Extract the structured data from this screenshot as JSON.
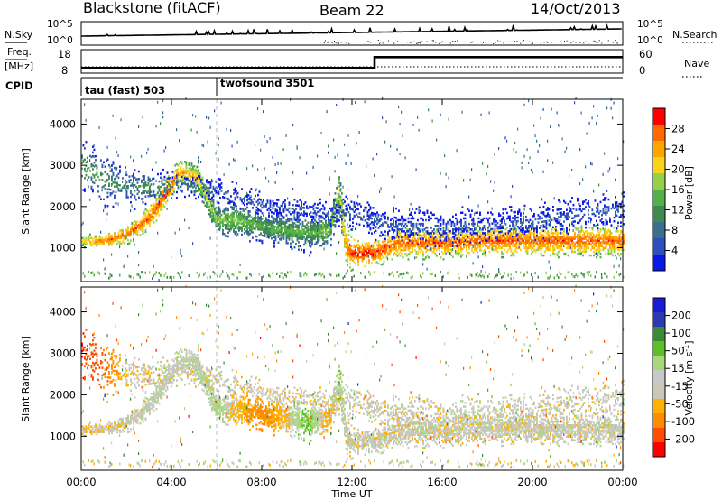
{
  "header": {
    "station": "Blackstone (fitACF)",
    "beam": "Beam 22",
    "date": "14/Oct/2013"
  },
  "summary_panels": {
    "nsky_label": "N.Sky",
    "nsearch_label": "N.Search",
    "noise_ticks_left": [
      "10^5",
      "10^0"
    ],
    "noise_ticks_right": [
      "10^5",
      "10^0"
    ],
    "freq_label_line1": "Freq.",
    "freq_label_line2": "[MHz]",
    "freq_ticks": [
      "18",
      "8"
    ],
    "nave_label": "Nave",
    "nave_ticks": [
      "60",
      "0"
    ],
    "cpid_label": "CPID",
    "cpid_segments": [
      {
        "name": "tau (fast) 503",
        "start_hour": 0
      },
      {
        "name": "twofsound 3501",
        "start_hour": 6
      }
    ]
  },
  "colors": {
    "power_scale": [
      "#0a1ae6",
      "#2e4fbf",
      "#3b6e8c",
      "#3f8a4c",
      "#55b04a",
      "#95d04a",
      "#ffd21a",
      "#ffa500",
      "#ff6a00",
      "#ff0000"
    ],
    "velocity_scale": [
      "#ff0000",
      "#ff4d00",
      "#ff8c00",
      "#ffb000",
      "#c8c8b4",
      "#c8c8c8",
      "#a8d878",
      "#5cbf2a",
      "#3a8a3a",
      "#2c3cb0",
      "#1a1ad8"
    ]
  },
  "chart_data": [
    {
      "type": "heatmap",
      "title": "",
      "parameter": "Power",
      "xlabel": "Time UT",
      "ylabel": "Slant Range [km]",
      "xlim_hours": [
        0,
        24
      ],
      "ylim_km": [
        180,
        4600
      ],
      "x_tick_labels": [
        "00:00",
        "04:00",
        "08:00",
        "12:00",
        "16:00",
        "20:00",
        "00:00"
      ],
      "y_tick_labels": [
        "1000",
        "2000",
        "3000",
        "4000"
      ],
      "y_tick_values": [
        1000,
        2000,
        3000,
        4000
      ],
      "colorbar_label": "Power [dB]",
      "colorbar_ticks": [
        "4",
        "8",
        "12",
        "16",
        "20",
        "24",
        "28"
      ],
      "colorbar_range": [
        0,
        30
      ],
      "echo_bands": [
        {
          "name": "main",
          "t": [
            0,
            1,
            2,
            3,
            3.8,
            4.3,
            4.6,
            5.2,
            6,
            7,
            8,
            9,
            10,
            11,
            11.4,
            11.7,
            12,
            13,
            14,
            16,
            18,
            20,
            22,
            24
          ],
          "r": [
            1150,
            1150,
            1300,
            1700,
            2350,
            2800,
            2800,
            2650,
            1650,
            1650,
            1500,
            1400,
            1350,
            1400,
            2350,
            1000,
            850,
            850,
            1100,
            1100,
            1150,
            1150,
            1150,
            1150
          ],
          "w": [
            100,
            100,
            150,
            200,
            250,
            200,
            200,
            300,
            250,
            300,
            250,
            300,
            300,
            300,
            350,
            400,
            250,
            200,
            250,
            250,
            250,
            250,
            250,
            250
          ],
          "p": [
            22,
            26,
            26,
            26,
            26,
            24,
            22,
            20,
            16,
            16,
            14,
            14,
            14,
            16,
            18,
            24,
            28,
            28,
            26,
            26,
            26,
            26,
            26,
            26
          ],
          "v": [
            -15,
            -5,
            0,
            5,
            10,
            10,
            10,
            15,
            30,
            -30,
            -70,
            -20,
            60,
            -40,
            40,
            0,
            0,
            0,
            0,
            0,
            0,
            0,
            0,
            0
          ]
        },
        {
          "name": "upper",
          "t": [
            0,
            1,
            2,
            3,
            4,
            4.5,
            5,
            5.5,
            6,
            8,
            10,
            11,
            12,
            14,
            16,
            18,
            20,
            22,
            24
          ],
          "r": [
            3000,
            2600,
            2450,
            2450,
            2450,
            2500,
            2450,
            2450,
            2400,
            2000,
            1900,
            1800,
            1800,
            1500,
            1500,
            1500,
            1600,
            1800,
            1900
          ],
          "w": [
            400,
            400,
            350,
            300,
            250,
            200,
            200,
            200,
            200,
            200,
            200,
            200,
            300,
            300,
            300,
            300,
            300,
            300,
            300
          ],
          "p": [
            14,
            12,
            10,
            12,
            10,
            8,
            8,
            8,
            6,
            6,
            6,
            6,
            6,
            6,
            6,
            6,
            6,
            6,
            6
          ],
          "v": [
            -200,
            -100,
            -15,
            0,
            0,
            0,
            0,
            0,
            0,
            0,
            0,
            0,
            0,
            0,
            0,
            0,
            0,
            0,
            0
          ]
        }
      ]
    },
    {
      "type": "heatmap",
      "title": "",
      "parameter": "Velocity",
      "xlabel": "Time UT",
      "ylabel": "Slant Range [km]",
      "xlim_hours": [
        0,
        24
      ],
      "ylim_km": [
        180,
        4600
      ],
      "x_tick_labels": [
        "00:00",
        "04:00",
        "08:00",
        "12:00",
        "16:00",
        "20:00",
        "00:00"
      ],
      "y_tick_labels": [
        "1000",
        "2000",
        "3000",
        "4000"
      ],
      "y_tick_values": [
        1000,
        2000,
        3000,
        4000
      ],
      "colorbar_label": "Velocity [m s^-1]",
      "colorbar_ticks": [
        "-200",
        "-100",
        "-50",
        "-15",
        "15",
        "50",
        "100",
        "200"
      ],
      "colorbar_range": [
        -250,
        250
      ]
    }
  ]
}
